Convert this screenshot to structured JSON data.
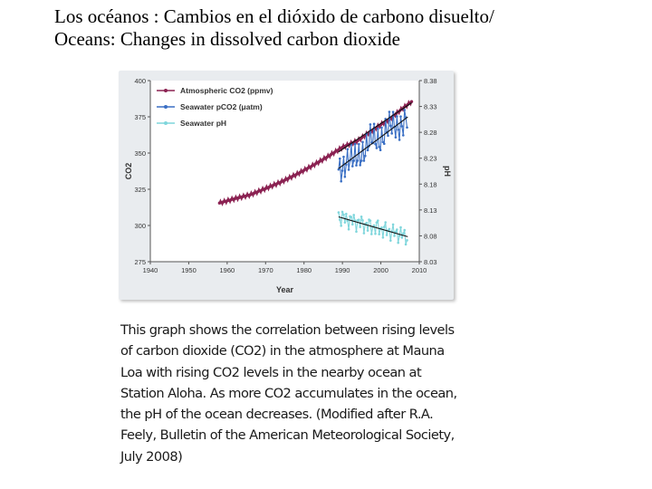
{
  "slide": {
    "title_line1": "Los océanos : Cambios en el dióxido de carbono disuelto/",
    "title_line2": "Oceans: Changes in dissolved carbon dioxide"
  },
  "chart_data": {
    "type": "line",
    "xlabel": "Year",
    "ylabel": "CO2",
    "y2label": "pH",
    "xlim": [
      1940,
      2010
    ],
    "ylim": [
      275,
      400
    ],
    "y2lim": [
      8.03,
      8.38
    ],
    "x_ticks": [
      1940,
      1950,
      1960,
      1970,
      1980,
      1990,
      2000,
      2010
    ],
    "y_ticks": [
      275,
      300,
      325,
      350,
      375,
      400
    ],
    "y2_ticks": [
      "8.03",
      "8.08",
      "8.13",
      "8.18",
      "8.23",
      "8.28",
      "8.33",
      "8.38"
    ],
    "legend_position": "top-left",
    "grid": false,
    "series": [
      {
        "name": "Atmospheric CO2 (ppmv)",
        "axis": "left",
        "color": "#8b2252",
        "x": [
          1958,
          1962,
          1966,
          1970,
          1974,
          1978,
          1982,
          1986,
          1990,
          1994,
          1998,
          2002,
          2006,
          2008
        ],
        "values": [
          315.5,
          318.5,
          321.2,
          325.5,
          330.0,
          335.2,
          341.0,
          347.2,
          354.0,
          358.6,
          366.2,
          373.0,
          381.5,
          385.5
        ]
      },
      {
        "name": "Seawater pCO2 (μatm)",
        "axis": "left",
        "color": "#3a6fc4",
        "x": [
          1989,
          1991,
          1993,
          1995,
          1997,
          1999,
          2001,
          2003,
          2005,
          2007
        ],
        "values": [
          338,
          346,
          343,
          352,
          357,
          359,
          365,
          367,
          371,
          373
        ]
      },
      {
        "name": "Seawater pH",
        "axis": "right",
        "color": "#7fd6dc",
        "x": [
          1989,
          1991,
          1993,
          1995,
          1997,
          1999,
          2001,
          2003,
          2005,
          2007
        ],
        "values": [
          8.117,
          8.112,
          8.108,
          8.104,
          8.099,
          8.096,
          8.091,
          8.087,
          8.083,
          8.078
        ]
      }
    ]
  },
  "caption": {
    "line1": "This graph shows the correlation between rising levels",
    "line2": "of carbon dioxide (CO2) in the atmosphere at Mauna",
    "line3": "Loa with rising CO2 levels in the nearby ocean at",
    "line4": "Station Aloha. As more CO2 accumulates in the ocean,",
    "line5": "the pH of the ocean decreases. (Modified after R.A.",
    "line6": "Feely, Bulletin of the American Meteorological Society,",
    "line7": "July 2008)"
  }
}
